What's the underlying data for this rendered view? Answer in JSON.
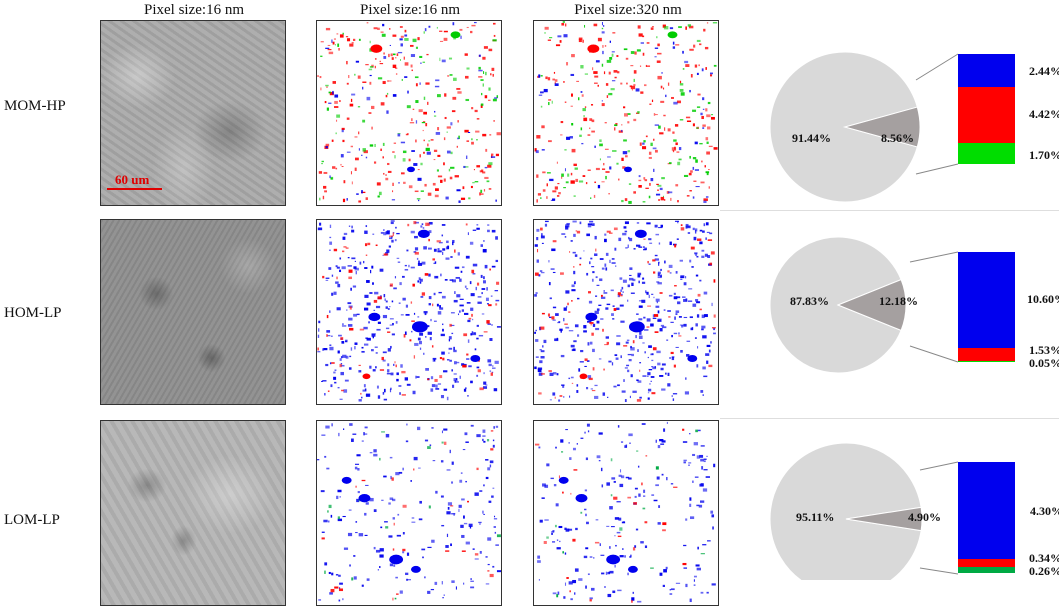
{
  "column_headers": [
    "Pixel size:16 nm",
    "Pixel size:16 nm",
    "Pixel size:320 nm"
  ],
  "scale_bar": "60 um",
  "rows": [
    {
      "label": "MOM-HP",
      "pie": {
        "major": "91.44%",
        "minor": "8.56%",
        "major_value": 91.44,
        "minor_value": 8.56
      },
      "stack": [
        {
          "label": "2.44%",
          "value": 2.44,
          "color": "#0000ee"
        },
        {
          "label": "4.42%",
          "value": 4.42,
          "color": "#ff0000"
        },
        {
          "label": "1.70%",
          "value": 1.7,
          "color": "#00dd00"
        }
      ],
      "dominant": "mixed"
    },
    {
      "label": "HOM-LP",
      "pie": {
        "major": "87.83%",
        "minor": "12.18%",
        "major_value": 87.83,
        "minor_value": 12.18
      },
      "stack": [
        {
          "label": "10.60%",
          "value": 10.6,
          "color": "#0000ee"
        },
        {
          "label": "1.53%",
          "value": 1.53,
          "color": "#ff0000"
        },
        {
          "label": "0.05%",
          "value": 0.05,
          "color": "#00dd00"
        }
      ],
      "dominant": "blue"
    },
    {
      "label": "LOM-LP",
      "pie": {
        "major": "95.11%",
        "minor": "4.90%",
        "major_value": 95.11,
        "minor_value": 4.9
      },
      "stack": [
        {
          "label": "4.30%",
          "value": 4.3,
          "color": "#0000ee"
        },
        {
          "label": "0.34%",
          "value": 0.34,
          "color": "#ff0000"
        },
        {
          "label": "0.26%",
          "value": 0.26,
          "color": "#00aa44"
        }
      ],
      "dominant": "blue-sparse"
    }
  ],
  "colors": {
    "pie_major": "#d9d9d9",
    "pie_minor": "#a5a0a0",
    "connector": "#888888"
  }
}
